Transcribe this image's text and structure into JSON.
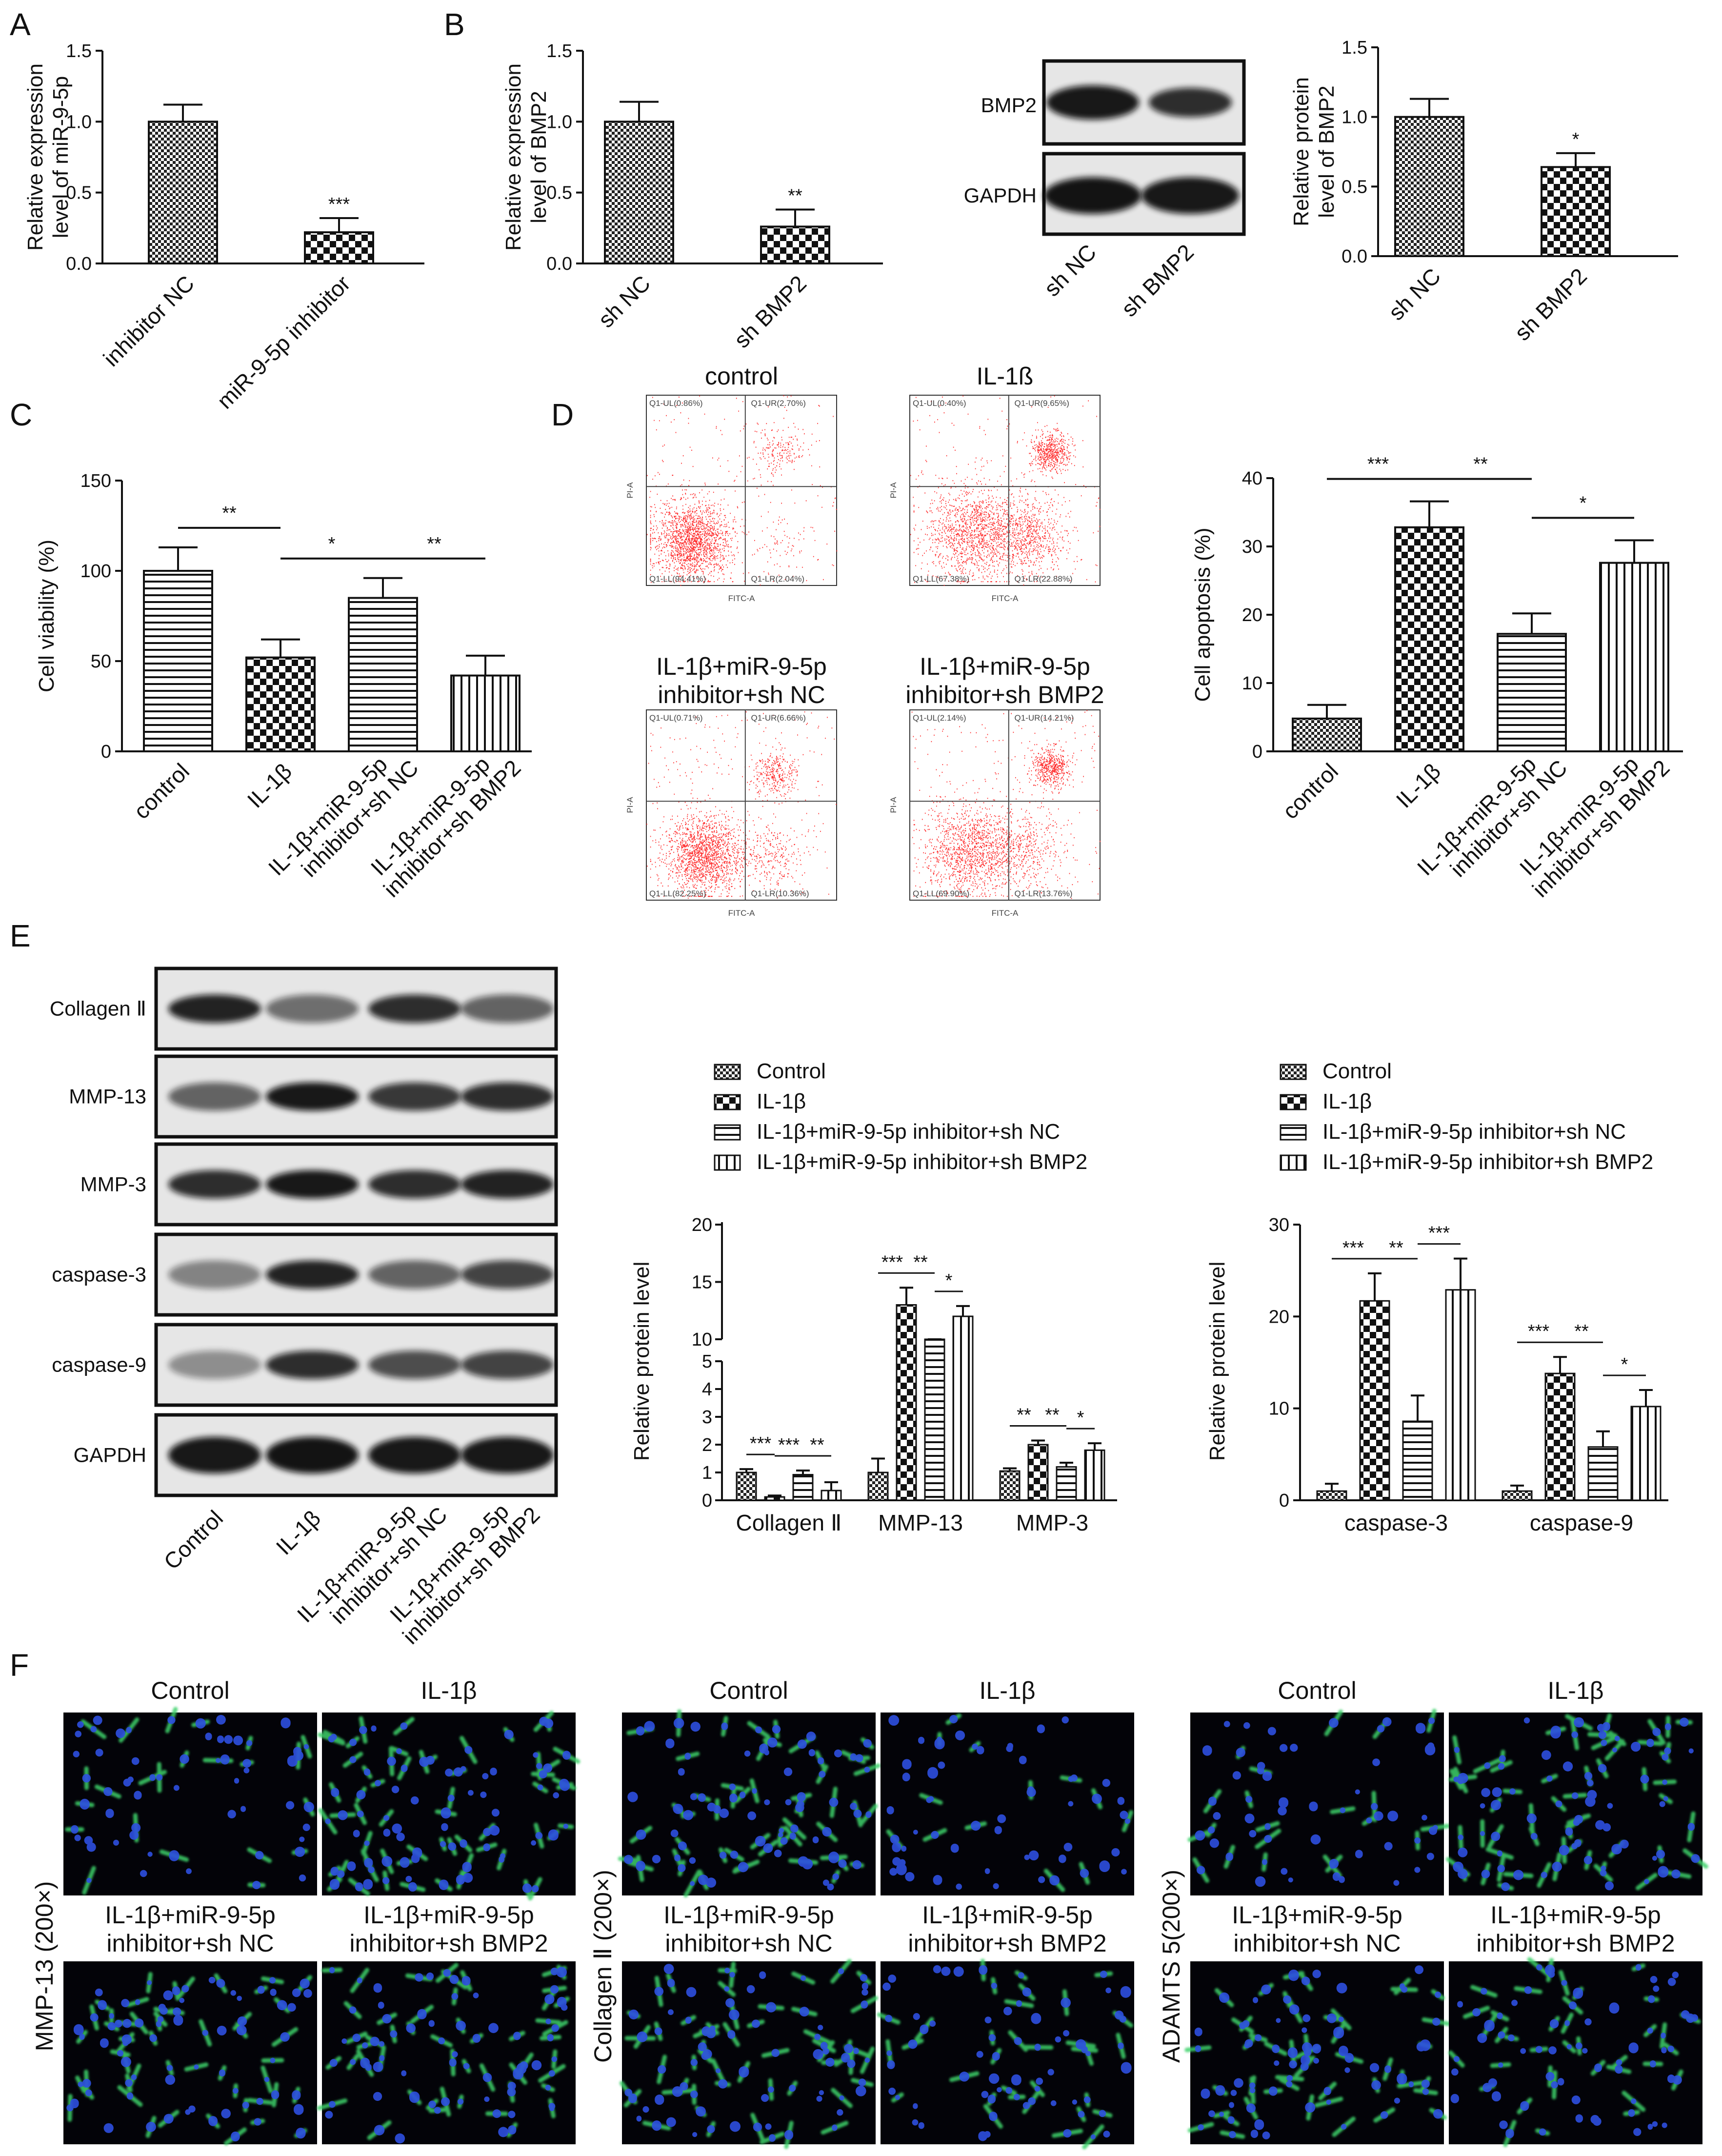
{
  "panels": {
    "A": "A",
    "B": "B",
    "C": "C",
    "D": "D",
    "E": "E",
    "F": "F"
  },
  "colors": {
    "flow_dots": "#ff2b2b",
    "axis": "#111111",
    "micro_bg": "#030308",
    "micro_blue": "#2d4fe0",
    "micro_green": "#3ed26a"
  },
  "patterns": {
    "0": "checker-small",
    "1": "checker-large",
    "2": "horizontal-stripes",
    "3": "vertical-stripes"
  },
  "blots": {
    "B": {
      "labels": [
        "BMP2",
        "GAPDH"
      ],
      "lanes": [
        "sh NC",
        "sh BMP2"
      ]
    },
    "E": {
      "labels": [
        "Collagen Ⅱ",
        "MMP-13",
        "MMP-3",
        "caspase-3",
        "caspase-9",
        "GAPDH"
      ],
      "lanes": [
        "Control",
        "IL-1β",
        "IL-1β+miR-9-5p inhibitor+sh NC",
        "IL-1β+miR-9-5p inhibitor+sh BMP2"
      ]
    }
  },
  "flow": {
    "titles": [
      "control",
      "IL-1ß",
      "IL-1β+miR-9-5p inhibitor+sh NC",
      "IL-1β+miR-9-5p inhibitor+sh BMP2"
    ],
    "ul": [
      "Q1-UL(0.86%)",
      "Q1-UL(0.40%)",
      "Q1-UL(0.71%)",
      "Q1-UL(2.14%)"
    ],
    "ur": [
      "Q1-UR(2.70%)",
      "Q1-UR(9.65%)",
      "Q1-UR(6.66%)",
      "Q1-UR(14.21%)"
    ],
    "ll": [
      "Q1-LL(94.41%)",
      "Q1-LL(67.38%)",
      "Q1-LL(82.25%)",
      "Q1-LL(69.90%)"
    ],
    "lr": [
      "Q1-LR(2.04%)",
      "Q1-LR(22.88%)",
      "Q1-LR(10.36%)",
      "Q1-LR(13.76%)"
    ],
    "xlabel": "FITC-A",
    "ylabel": "PI-A"
  },
  "micro": {
    "groups": [
      {
        "ylabel": "MMP-13 (200×)",
        "titles": [
          "Control",
          "IL-1β",
          "IL-1β+miR-9-5p inhibitor+sh NC",
          "IL-1β+miR-9-5p inhibitor+sh BMP2"
        ]
      },
      {
        "ylabel": "Collagen Ⅱ (200×)",
        "titles": [
          "Control",
          "IL-1β",
          "IL-1β+miR-9-5p inhibitor+sh NC",
          "IL-1β+miR-9-5p inhibitor+sh BMP2"
        ]
      },
      {
        "ylabel": "ADAMTS 5(200×)",
        "titles": [
          "Control",
          "IL-1β",
          "IL-1β+miR-9-5p inhibitor+sh NC",
          "IL-1β+miR-9-5p inhibitor+sh BMP2"
        ]
      }
    ]
  },
  "chart_data": [
    {
      "id": "A",
      "type": "bar",
      "categories": [
        "inhibitor NC",
        "miR-9-5p inhibitor"
      ],
      "values": [
        1.0,
        0.22
      ],
      "errors": [
        0.12,
        0.1
      ],
      "ylabel": "Relative expression level of miR-9-5p",
      "ylim": [
        0,
        1.5
      ],
      "yticks": [
        "0.0",
        "0.5",
        "1.0",
        "1.5"
      ],
      "patterns": [
        0,
        1
      ],
      "significance": [
        "",
        "***"
      ]
    },
    {
      "id": "B1",
      "type": "bar",
      "categories": [
        "sh NC",
        "sh BMP2"
      ],
      "values": [
        1.0,
        0.26
      ],
      "errors": [
        0.14,
        0.12
      ],
      "ylabel": "Relative expression level of BMP2",
      "ylim": [
        0,
        1.5
      ],
      "yticks": [
        "0.0",
        "0.5",
        "1.0",
        "1.5"
      ],
      "patterns": [
        0,
        1
      ],
      "significance": [
        "",
        "**"
      ]
    },
    {
      "id": "B2",
      "type": "bar",
      "categories": [
        "sh NC",
        "sh BMP2"
      ],
      "values": [
        1.0,
        0.64
      ],
      "errors": [
        0.13,
        0.1
      ],
      "ylabel": "Relative protein level of BMP2",
      "ylim": [
        0,
        1.5
      ],
      "yticks": [
        "0.0",
        "0.5",
        "1.0",
        "1.5"
      ],
      "patterns": [
        0,
        1
      ],
      "significance": [
        "",
        "*"
      ]
    },
    {
      "id": "C",
      "type": "bar",
      "categories": [
        "control",
        "IL-1β",
        "IL-1β+miR-9-5p inhibitor+sh NC",
        "IL-1β+miR-9-5p inhibitor+sh BMP2"
      ],
      "values": [
        100,
        52,
        85,
        42
      ],
      "errors": [
        13,
        10,
        11,
        11
      ],
      "ylabel": "Cell viability (%)",
      "ylim": [
        0,
        150
      ],
      "yticks": [
        "0",
        "50",
        "100",
        "150"
      ],
      "patterns": [
        2,
        1,
        2,
        3
      ],
      "brackets": [
        {
          "from": 0,
          "to": 1,
          "label": "**"
        },
        {
          "from": 1,
          "to": 2,
          "label": "*"
        },
        {
          "from": 2,
          "to": 3,
          "label": "**"
        }
      ]
    },
    {
      "id": "D",
      "type": "bar",
      "categories": [
        "control",
        "IL-1β",
        "IL-1β+miR-9-5p inhibitor+sh NC",
        "IL-1β+miR-9-5p inhibitor+sh BMP2"
      ],
      "values": [
        4.8,
        32.8,
        17.2,
        27.6
      ],
      "errors": [
        2.0,
        3.8,
        3.0,
        3.3
      ],
      "ylabel": "Cell apoptosis (%)",
      "ylim": [
        0,
        40
      ],
      "yticks": [
        "0",
        "10",
        "20",
        "30",
        "40"
      ],
      "patterns": [
        0,
        1,
        2,
        3
      ],
      "brackets": [
        {
          "from": 0,
          "to": 1,
          "label": "***"
        },
        {
          "from": 1,
          "to": 2,
          "label": "**"
        },
        {
          "from": 2,
          "to": 3,
          "label": "*"
        }
      ]
    },
    {
      "id": "E1",
      "type": "bar",
      "groups": [
        "Collagen Ⅱ",
        "MMP-13",
        "MMP-3"
      ],
      "series": [
        {
          "name": "Control",
          "values": [
            1.0,
            1.0,
            1.05
          ],
          "errors": [
            0.12,
            0.5,
            0.1
          ]
        },
        {
          "name": "IL-1β",
          "values": [
            0.12,
            13.0,
            2.0
          ],
          "errors": [
            0.05,
            1.5,
            0.15
          ]
        },
        {
          "name": "IL-1β+miR-9-5p inhibitor+sh NC",
          "values": [
            0.92,
            8.5,
            1.2
          ],
          "errors": [
            0.15,
            1.0,
            0.15
          ]
        },
        {
          "name": "IL-1β+miR-9-5p inhibitor+sh BMP2",
          "values": [
            0.35,
            12.0,
            1.8
          ],
          "errors": [
            0.3,
            0.9,
            0.25
          ]
        }
      ],
      "ylabel": "Relative protein level",
      "yticks_low": [
        "0",
        "1",
        "2",
        "3",
        "4",
        "5"
      ],
      "yticks_high": [
        "10",
        "15",
        "20"
      ],
      "sig": [
        [
          "***",
          "***",
          "**"
        ],
        [
          "***",
          "**",
          "*"
        ],
        [
          "**",
          "**",
          "*"
        ]
      ]
    },
    {
      "id": "E2",
      "type": "bar",
      "groups": [
        "caspase-3",
        "caspase-9"
      ],
      "series": [
        {
          "name": "Control",
          "values": [
            1.0,
            1.0
          ],
          "errors": [
            0.8,
            0.6
          ]
        },
        {
          "name": "IL-1β",
          "values": [
            21.7,
            13.8
          ],
          "errors": [
            3.0,
            1.8
          ]
        },
        {
          "name": "IL-1β+miR-9-5p inhibitor+sh NC",
          "values": [
            8.6,
            5.8
          ],
          "errors": [
            2.8,
            1.7
          ]
        },
        {
          "name": "IL-1β+miR-9-5p inhibitor+sh BMP2",
          "values": [
            22.9,
            10.2
          ],
          "errors": [
            3.4,
            1.8
          ]
        }
      ],
      "ylabel": "Relative protein level",
      "ylim": [
        0,
        30
      ],
      "yticks": [
        "0",
        "10",
        "20",
        "30"
      ],
      "sig": [
        [
          "***",
          "**",
          "***"
        ],
        [
          "***",
          "**",
          "*"
        ]
      ]
    }
  ]
}
